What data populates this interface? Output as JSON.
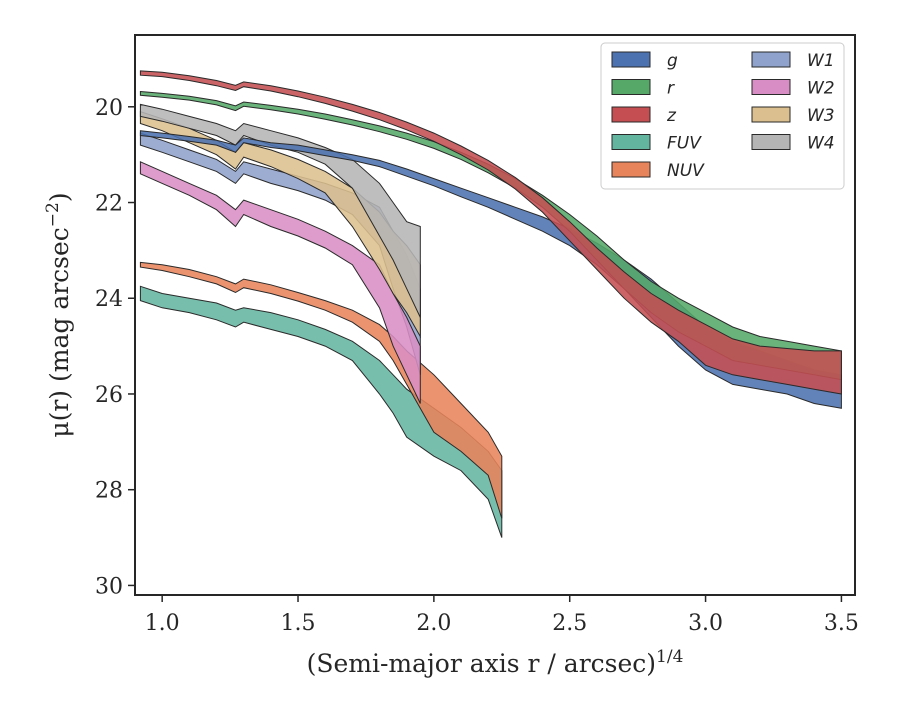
{
  "chart_data": {
    "type": "area",
    "xlabel": "(Semi-major axis r / arcsec)",
    "xlabel_superscript": "1/4",
    "ylabel": "μ(r) (mag arcsec",
    "ylabel_superscript": "−2",
    "ylabel_tail": ")",
    "xlim": [
      0.9,
      3.55
    ],
    "ylim": [
      30.2,
      18.5
    ],
    "y_inverted": true,
    "grid": false,
    "legend_position": "top-right",
    "legend_columns": 2,
    "x_ticks": [
      1.0,
      1.5,
      2.0,
      2.5,
      3.0,
      3.5
    ],
    "x_tick_labels": [
      "1.0",
      "1.5",
      "2.0",
      "2.5",
      "3.0",
      "3.5"
    ],
    "y_ticks": [
      20,
      22,
      24,
      26,
      28,
      30
    ],
    "y_tick_labels": [
      "20",
      "22",
      "24",
      "26",
      "28",
      "30"
    ],
    "series": [
      {
        "name": "g",
        "color": "#4c72b0",
        "points": [
          [
            0.92,
            20.5,
            20.6
          ],
          [
            1.0,
            20.55,
            20.65
          ],
          [
            1.1,
            20.62,
            20.72
          ],
          [
            1.2,
            20.7,
            20.8
          ],
          [
            1.27,
            20.8,
            20.95
          ],
          [
            1.3,
            20.65,
            20.75
          ],
          [
            1.4,
            20.75,
            20.85
          ],
          [
            1.5,
            20.8,
            20.92
          ],
          [
            1.6,
            20.9,
            21.02
          ],
          [
            1.7,
            21.0,
            21.12
          ],
          [
            1.8,
            21.12,
            21.25
          ],
          [
            1.9,
            21.3,
            21.45
          ],
          [
            2.0,
            21.5,
            21.65
          ],
          [
            2.1,
            21.7,
            21.88
          ],
          [
            2.2,
            21.9,
            22.1
          ],
          [
            2.3,
            22.1,
            22.35
          ],
          [
            2.4,
            22.3,
            22.6
          ],
          [
            2.5,
            22.55,
            22.9
          ],
          [
            2.6,
            22.85,
            23.3
          ],
          [
            2.7,
            23.2,
            23.8
          ],
          [
            2.8,
            23.6,
            24.4
          ],
          [
            2.9,
            24.1,
            25.0
          ],
          [
            3.0,
            24.6,
            25.5
          ],
          [
            3.1,
            24.9,
            25.8
          ],
          [
            3.2,
            25.1,
            25.9
          ],
          [
            3.3,
            25.3,
            26.0
          ],
          [
            3.4,
            25.5,
            26.2
          ],
          [
            3.5,
            25.6,
            26.3
          ]
        ]
      },
      {
        "name": "r",
        "color": "#55a868",
        "points": [
          [
            0.92,
            19.68,
            19.76
          ],
          [
            1.0,
            19.72,
            19.8
          ],
          [
            1.1,
            19.78,
            19.86
          ],
          [
            1.2,
            19.87,
            19.96
          ],
          [
            1.27,
            19.98,
            20.08
          ],
          [
            1.3,
            19.9,
            19.99
          ],
          [
            1.4,
            19.97,
            20.06
          ],
          [
            1.5,
            20.05,
            20.15
          ],
          [
            1.6,
            20.15,
            20.26
          ],
          [
            1.7,
            20.27,
            20.38
          ],
          [
            1.8,
            20.4,
            20.52
          ],
          [
            1.9,
            20.55,
            20.68
          ],
          [
            2.0,
            20.73,
            20.87
          ],
          [
            2.1,
            20.95,
            21.1
          ],
          [
            2.2,
            21.2,
            21.38
          ],
          [
            2.3,
            21.5,
            21.7
          ],
          [
            2.4,
            21.85,
            22.1
          ],
          [
            2.5,
            22.25,
            22.6
          ],
          [
            2.6,
            22.7,
            23.2
          ],
          [
            2.7,
            23.2,
            23.8
          ],
          [
            2.8,
            23.65,
            24.3
          ],
          [
            2.9,
            24.0,
            24.7
          ],
          [
            3.0,
            24.3,
            25.0
          ],
          [
            3.1,
            24.6,
            25.3
          ],
          [
            3.2,
            24.8,
            25.4
          ],
          [
            3.3,
            24.9,
            25.5
          ],
          [
            3.4,
            25.0,
            25.6
          ],
          [
            3.5,
            25.1,
            25.7
          ]
        ]
      },
      {
        "name": "z",
        "color": "#c44e52",
        "points": [
          [
            0.92,
            19.25,
            19.34
          ],
          [
            1.0,
            19.28,
            19.37
          ],
          [
            1.1,
            19.35,
            19.45
          ],
          [
            1.2,
            19.45,
            19.56
          ],
          [
            1.27,
            19.55,
            19.66
          ],
          [
            1.3,
            19.48,
            19.58
          ],
          [
            1.4,
            19.56,
            19.67
          ],
          [
            1.5,
            19.67,
            19.79
          ],
          [
            1.6,
            19.8,
            19.93
          ],
          [
            1.7,
            19.95,
            20.09
          ],
          [
            1.8,
            20.12,
            20.27
          ],
          [
            1.9,
            20.32,
            20.48
          ],
          [
            2.0,
            20.55,
            20.72
          ],
          [
            2.1,
            20.82,
            21.0
          ],
          [
            2.2,
            21.12,
            21.32
          ],
          [
            2.3,
            21.48,
            21.72
          ],
          [
            2.4,
            21.9,
            22.2
          ],
          [
            2.5,
            22.4,
            22.8
          ],
          [
            2.6,
            22.95,
            23.4
          ],
          [
            2.7,
            23.45,
            24.0
          ],
          [
            2.8,
            23.9,
            24.5
          ],
          [
            2.9,
            24.25,
            24.9
          ],
          [
            3.0,
            24.55,
            25.4
          ],
          [
            3.1,
            24.85,
            25.6
          ],
          [
            3.2,
            25.0,
            25.7
          ],
          [
            3.3,
            25.05,
            25.8
          ],
          [
            3.4,
            25.1,
            25.9
          ],
          [
            3.5,
            25.1,
            26.0
          ]
        ]
      },
      {
        "name": "FUV",
        "color": "#64b5a0",
        "points": [
          [
            0.92,
            23.75,
            24.05
          ],
          [
            1.0,
            23.9,
            24.2
          ],
          [
            1.1,
            24.0,
            24.3
          ],
          [
            1.2,
            24.1,
            24.45
          ],
          [
            1.27,
            24.25,
            24.6
          ],
          [
            1.3,
            24.2,
            24.5
          ],
          [
            1.4,
            24.3,
            24.65
          ],
          [
            1.5,
            24.45,
            24.8
          ],
          [
            1.6,
            24.65,
            25.0
          ],
          [
            1.7,
            24.9,
            25.3
          ],
          [
            1.8,
            25.3,
            26.0
          ],
          [
            1.85,
            25.6,
            26.4
          ],
          [
            1.9,
            25.9,
            26.9
          ],
          [
            2.0,
            26.3,
            27.3
          ],
          [
            2.1,
            26.7,
            27.6
          ],
          [
            2.2,
            27.2,
            28.2
          ],
          [
            2.25,
            27.6,
            29.0
          ]
        ]
      },
      {
        "name": "NUV",
        "color": "#e8845b",
        "points": [
          [
            0.92,
            23.25,
            23.35
          ],
          [
            1.0,
            23.3,
            23.42
          ],
          [
            1.1,
            23.4,
            23.55
          ],
          [
            1.2,
            23.55,
            23.7
          ],
          [
            1.27,
            23.7,
            23.88
          ],
          [
            1.3,
            23.6,
            23.78
          ],
          [
            1.4,
            23.72,
            23.9
          ],
          [
            1.5,
            23.88,
            24.06
          ],
          [
            1.6,
            24.05,
            24.25
          ],
          [
            1.7,
            24.25,
            24.5
          ],
          [
            1.8,
            24.55,
            24.9
          ],
          [
            1.85,
            24.8,
            25.3
          ],
          [
            1.9,
            25.1,
            25.8
          ],
          [
            2.0,
            25.6,
            26.8
          ],
          [
            2.1,
            26.2,
            27.2
          ],
          [
            2.2,
            26.8,
            27.7
          ],
          [
            2.25,
            27.3,
            28.6
          ]
        ]
      },
      {
        "name": "W1",
        "color": "#8fa2cc",
        "points": [
          [
            0.92,
            20.55,
            20.8
          ],
          [
            1.0,
            20.7,
            20.95
          ],
          [
            1.1,
            20.9,
            21.15
          ],
          [
            1.2,
            21.1,
            21.35
          ],
          [
            1.27,
            21.35,
            21.6
          ],
          [
            1.3,
            21.15,
            21.4
          ],
          [
            1.4,
            21.3,
            21.6
          ],
          [
            1.5,
            21.45,
            21.75
          ],
          [
            1.6,
            21.6,
            21.95
          ],
          [
            1.7,
            21.8,
            22.25
          ],
          [
            1.8,
            22.1,
            22.9
          ],
          [
            1.85,
            22.6,
            23.8
          ],
          [
            1.9,
            23.1,
            24.6
          ],
          [
            1.95,
            23.8,
            25.6
          ]
        ]
      },
      {
        "name": "W2",
        "color": "#d88ec4",
        "points": [
          [
            0.92,
            21.15,
            21.4
          ],
          [
            1.0,
            21.35,
            21.6
          ],
          [
            1.1,
            21.6,
            21.85
          ],
          [
            1.2,
            21.85,
            22.15
          ],
          [
            1.27,
            22.15,
            22.5
          ],
          [
            1.3,
            21.95,
            22.25
          ],
          [
            1.4,
            22.15,
            22.5
          ],
          [
            1.5,
            22.35,
            22.7
          ],
          [
            1.6,
            22.6,
            22.95
          ],
          [
            1.7,
            22.9,
            23.3
          ],
          [
            1.8,
            23.3,
            24.2
          ],
          [
            1.85,
            23.9,
            25.0
          ],
          [
            1.9,
            24.4,
            25.6
          ],
          [
            1.95,
            25.0,
            26.2
          ]
        ]
      },
      {
        "name": "W3",
        "color": "#dcbf8e",
        "points": [
          [
            0.92,
            20.1,
            20.35
          ],
          [
            1.0,
            20.25,
            20.5
          ],
          [
            1.1,
            20.45,
            20.75
          ],
          [
            1.2,
            20.7,
            21.0
          ],
          [
            1.27,
            20.95,
            21.3
          ],
          [
            1.3,
            20.75,
            21.05
          ],
          [
            1.4,
            20.9,
            21.25
          ],
          [
            1.5,
            21.1,
            21.5
          ],
          [
            1.6,
            21.35,
            21.8
          ],
          [
            1.7,
            21.7,
            22.5
          ],
          [
            1.8,
            22.2,
            23.4
          ],
          [
            1.85,
            22.6,
            23.9
          ],
          [
            1.9,
            22.9,
            24.3
          ],
          [
            1.95,
            23.3,
            24.8
          ]
        ]
      },
      {
        "name": "W4",
        "color": "#b5b5b5",
        "points": [
          [
            0.92,
            19.95,
            20.2
          ],
          [
            1.0,
            20.05,
            20.3
          ],
          [
            1.1,
            20.2,
            20.45
          ],
          [
            1.2,
            20.35,
            20.6
          ],
          [
            1.27,
            20.5,
            20.8
          ],
          [
            1.3,
            20.35,
            20.6
          ],
          [
            1.4,
            20.5,
            20.8
          ],
          [
            1.5,
            20.65,
            20.95
          ],
          [
            1.6,
            20.85,
            21.2
          ],
          [
            1.7,
            21.1,
            21.7
          ],
          [
            1.8,
            21.6,
            22.7
          ],
          [
            1.85,
            22.0,
            23.2
          ],
          [
            1.9,
            22.4,
            23.8
          ],
          [
            1.95,
            22.5,
            24.4
          ]
        ]
      }
    ]
  }
}
